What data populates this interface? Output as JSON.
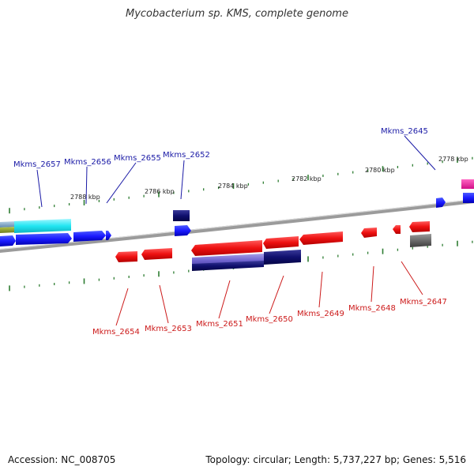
{
  "title": "Mycobacterium sp. KMS, complete genome",
  "footer": {
    "accession": "Accession: NC_008705",
    "stats": "Topology: circular; Length: 5,737,227 bp; Genes: 5,516"
  },
  "colors": {
    "forward_label": "#1a1aa6",
    "reverse_label": "#cc1a1a",
    "tick": "#2e7d32",
    "backbone": "#8c8c8c"
  },
  "scale_labels": [
    "2788 kbp",
    "2786 kbp",
    "2784 kbp",
    "2782 kbp",
    "2780 kbp",
    "2778 kbp"
  ],
  "forward_genes": [
    "Mkms_2657",
    "Mkms_2656",
    "Mkms_2655",
    "Mkms_2652",
    "Mkms_2645"
  ],
  "reverse_genes": [
    "Mkms_2654",
    "Mkms_2653",
    "Mkms_2651",
    "Mkms_2650",
    "Mkms_2649",
    "Mkms_2648",
    "Mkms_2647"
  ]
}
